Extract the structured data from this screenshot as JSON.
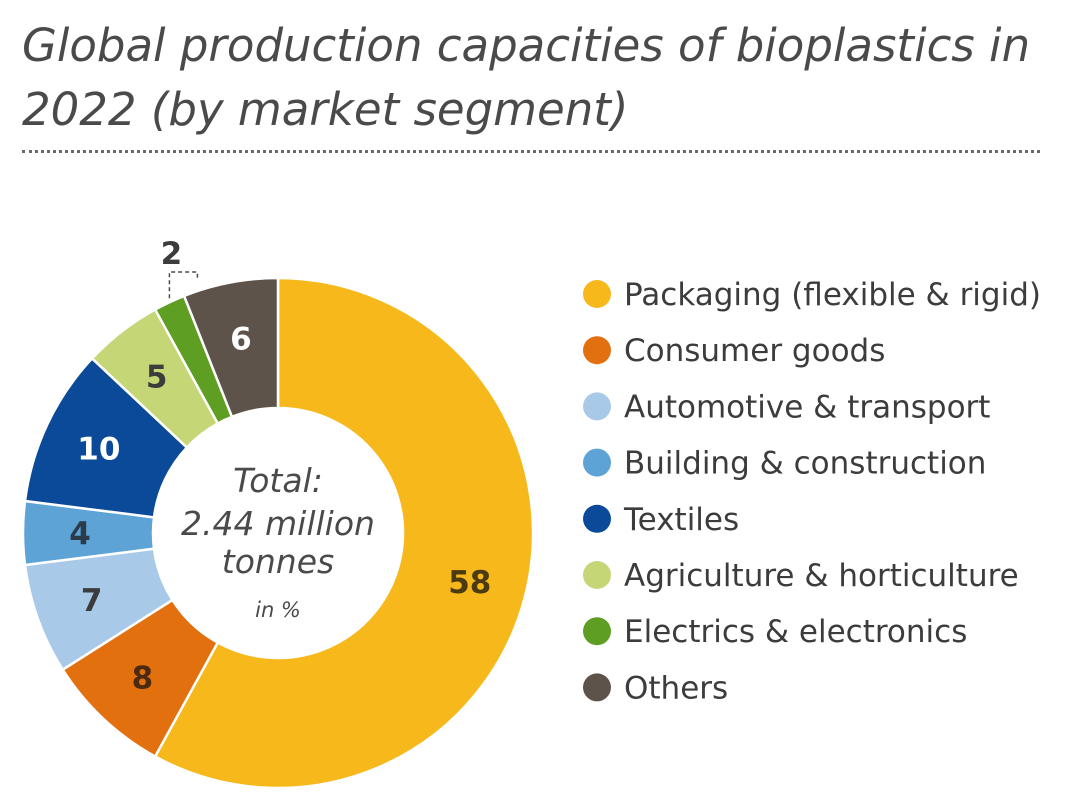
{
  "title": "Global production capacities of bioplastics in 2022 (by market segment)",
  "chart_data": {
    "type": "pie",
    "donut": true,
    "unit": "%",
    "center_label": [
      "Total:",
      "2.44 million",
      "tonnes"
    ],
    "center_unit": "in %",
    "legend_position": "right",
    "slices": [
      {
        "name": "Packaging (flexible & rigid)",
        "value": 58,
        "color": "#f7b81b",
        "label_color": "#4a3b10"
      },
      {
        "name": "Consumer goods",
        "value": 8,
        "color": "#e3700f",
        "label_color": "#4a2a10"
      },
      {
        "name": "Automotive & transport",
        "value": 7,
        "color": "#a9c9e8",
        "label_color": "#3c3c3c"
      },
      {
        "name": "Building & construction",
        "value": 4,
        "color": "#5ea3d6",
        "label_color": "#2b3b4a"
      },
      {
        "name": "Textiles",
        "value": 10,
        "color": "#0a4a98",
        "label_color": "#ffffff"
      },
      {
        "name": "Agriculture & horticulture",
        "value": 5,
        "color": "#c5d676",
        "label_color": "#3c3c3c"
      },
      {
        "name": "Electrics & electronics",
        "value": 2,
        "color": "#5e9e22",
        "label_color": "#3c3c3c"
      },
      {
        "name": "Others",
        "value": 6,
        "color": "#5e534a",
        "label_color": "#ffffff"
      }
    ]
  }
}
